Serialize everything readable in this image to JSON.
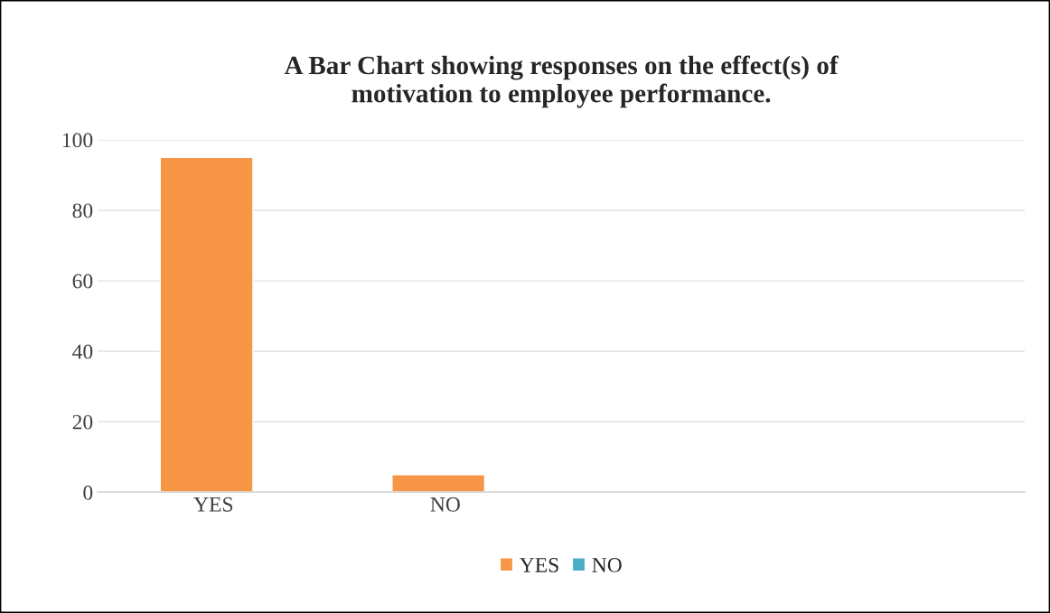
{
  "chart_data": {
    "type": "bar",
    "title": "A Bar Chart showing responses on the effect(s) of\nmotivation to employee performance.",
    "categories": [
      "YES",
      "NO",
      null,
      null
    ],
    "series": [
      {
        "name": "YES",
        "color": "#f79646",
        "values": [
          95,
          5,
          null,
          null
        ]
      },
      {
        "name": "NO",
        "color": "#4bacc6",
        "values": [
          null,
          null,
          null,
          null
        ]
      }
    ],
    "ylim": [
      0,
      100
    ],
    "yticks": [
      0,
      20,
      40,
      60,
      80,
      100
    ],
    "grid": "y",
    "legend": "bottom"
  }
}
